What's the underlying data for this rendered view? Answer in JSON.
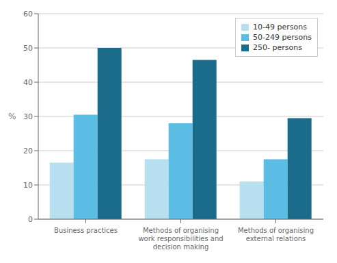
{
  "chart_data": {
    "type": "bar",
    "categories": [
      "Business practices",
      "Methods of organising\nwork responsibilities and\ndecision making",
      "Methods of organising\nexternal relations"
    ],
    "series": [
      {
        "name": "10-49 persons",
        "color": "#b8dff0",
        "values": [
          16.5,
          17.5,
          11.0
        ]
      },
      {
        "name": "50-249 persons",
        "color": "#5bbce4",
        "values": [
          30.5,
          28.0,
          17.5
        ]
      },
      {
        "name": "250- persons",
        "color": "#1b6b8a",
        "values": [
          50.0,
          46.5,
          29.5
        ]
      }
    ],
    "ylabel": "%",
    "ylim": [
      0,
      60
    ],
    "yticks": [
      0,
      10,
      20,
      30,
      40,
      50,
      60
    ],
    "grid": true,
    "legend": "upper right"
  }
}
